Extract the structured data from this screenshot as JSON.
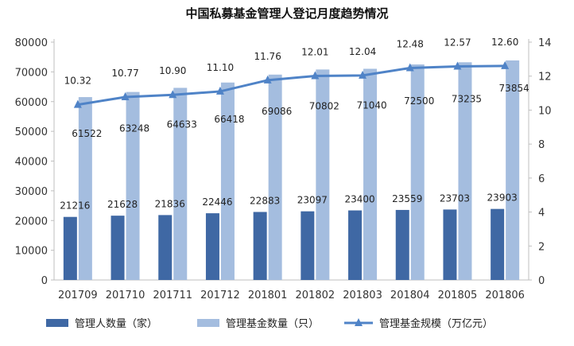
{
  "chart_data": {
    "type": "bar",
    "title": "中国私募基金管理人登记月度趋势情况",
    "categories": [
      "201709",
      "201710",
      "201711",
      "201712",
      "201801",
      "201802",
      "201803",
      "201804",
      "201805",
      "201806"
    ],
    "series": [
      {
        "name": "管理人数量（家）",
        "type": "bar",
        "axis": "left",
        "color": "#3f68a4",
        "values": [
          21216,
          21628,
          21836,
          22446,
          22883,
          23097,
          23400,
          23559,
          23703,
          23903
        ]
      },
      {
        "name": "管理基金数量（只）",
        "type": "bar",
        "axis": "left",
        "color": "#a4bddf",
        "values": [
          61522,
          63248,
          64633,
          66418,
          69086,
          70802,
          71040,
          72500,
          73235,
          73854
        ]
      },
      {
        "name": "管理基金规模（万亿元）",
        "type": "line",
        "axis": "right",
        "color": "#4f83c7",
        "values": [
          10.32,
          10.77,
          10.9,
          11.1,
          11.76,
          12.01,
          12.04,
          12.48,
          12.57,
          12.6
        ]
      }
    ],
    "left_axis": {
      "min": 0,
      "max": 80000,
      "ticks": [
        0,
        10000,
        20000,
        30000,
        40000,
        50000,
        60000,
        70000,
        80000
      ]
    },
    "right_axis": {
      "min": 0,
      "max": 14,
      "ticks": [
        0,
        2,
        4,
        6,
        8,
        10,
        12,
        14
      ]
    },
    "legend_position": "bottom"
  }
}
